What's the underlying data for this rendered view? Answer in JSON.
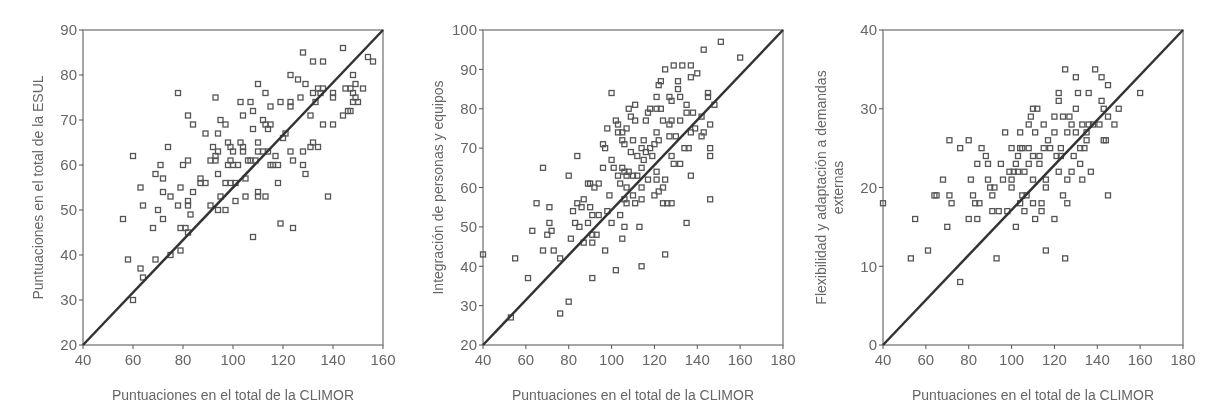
{
  "chart_data": [
    {
      "type": "scatter",
      "xlabel": "Puntuaciones en el total de la CLIMOR",
      "ylabel": "Puntuaciones en el total de la ESUL",
      "xlim": [
        40,
        160
      ],
      "ylim": [
        20,
        90
      ],
      "xticks": [
        40,
        60,
        80,
        100,
        120,
        140,
        160
      ],
      "yticks": [
        20,
        30,
        40,
        50,
        60,
        70,
        80,
        90
      ],
      "grid": false,
      "series": [
        {
          "marker": "square",
          "color": "#555555",
          "x": [
            56,
            58,
            60,
            60,
            63,
            63,
            64,
            64,
            68,
            69,
            69,
            70,
            71,
            72,
            72,
            72,
            74,
            75,
            75,
            78,
            78,
            79,
            79,
            79,
            80,
            81,
            82,
            82,
            82,
            82,
            82,
            83,
            84,
            84,
            87,
            87,
            89,
            89,
            91,
            91,
            92,
            93,
            93,
            93,
            94,
            94,
            94,
            94,
            95,
            95,
            97,
            97,
            97,
            98,
            98,
            99,
            99,
            99,
            100,
            100,
            101,
            101,
            102,
            103,
            103,
            104,
            104,
            104,
            105,
            105,
            106,
            107,
            107,
            108,
            108,
            108,
            109,
            110,
            110,
            110,
            110,
            110,
            112,
            112,
            113,
            113,
            113,
            114,
            114,
            115,
            115,
            115,
            116,
            117,
            118,
            118,
            119,
            119,
            120,
            121,
            123,
            123,
            123,
            123,
            124,
            124,
            126,
            127,
            128,
            128,
            128,
            129,
            129,
            131,
            131,
            132,
            132,
            132,
            133,
            134,
            134,
            135,
            136,
            136,
            136,
            140,
            140,
            140,
            138,
            144,
            144,
            145,
            146,
            147,
            147,
            148,
            148,
            148,
            149,
            149,
            150,
            152,
            154,
            156
          ],
          "values": [
            48,
            39,
            62,
            30,
            37,
            55,
            51,
            35,
            46,
            58,
            39,
            50,
            60,
            57,
            54,
            48,
            64,
            53,
            40,
            76,
            51,
            55,
            46,
            41,
            60,
            46,
            45,
            61,
            71,
            52,
            51,
            49,
            69,
            54,
            57,
            56,
            67,
            56,
            61,
            51,
            64,
            75,
            62,
            61,
            67,
            63,
            58,
            50,
            53,
            70,
            69,
            56,
            50,
            65,
            60,
            61,
            56,
            64,
            63,
            60,
            56,
            52,
            60,
            74,
            65,
            71,
            64,
            63,
            57,
            53,
            61,
            74,
            61,
            72,
            68,
            44,
            61,
            78,
            65,
            63,
            54,
            53,
            70,
            63,
            76,
            53,
            69,
            68,
            63,
            73,
            69,
            60,
            60,
            62,
            60,
            56,
            74,
            47,
            66,
            67,
            80,
            74,
            73,
            63,
            61,
            46,
            79,
            75,
            85,
            63,
            60,
            78,
            58,
            64,
            71,
            83,
            76,
            65,
            74,
            64,
            77,
            76,
            83,
            77,
            69,
            76,
            75,
            69,
            53,
            71,
            86,
            77,
            72,
            77,
            72,
            80,
            76,
            74,
            78,
            75,
            74,
            77,
            84,
            83
          ]
        },
        {
          "type": "line",
          "color": "#333333",
          "x": [
            40,
            160
          ],
          "values": [
            20,
            90
          ]
        }
      ]
    },
    {
      "type": "scatter",
      "xlabel": "Puntuaciones en el total de la CLIMOR",
      "ylabel": "Integración de personas y equipos",
      "xlim": [
        40,
        180
      ],
      "ylim": [
        20,
        100
      ],
      "xticks": [
        40,
        60,
        80,
        100,
        120,
        140,
        160,
        180
      ],
      "yticks": [
        20,
        30,
        40,
        50,
        60,
        70,
        80,
        90,
        100
      ],
      "grid": false,
      "series": [
        {
          "marker": "square",
          "color": "#555555",
          "x": [
            40,
            53,
            55,
            61,
            63,
            65,
            68,
            68,
            70,
            71,
            71,
            72,
            73,
            76,
            76,
            80,
            80,
            81,
            82,
            83,
            84,
            84,
            85,
            86,
            87,
            87,
            89,
            89,
            90,
            90,
            91,
            91,
            91,
            91,
            92,
            93,
            94,
            94,
            96,
            96,
            97,
            97,
            98,
            98,
            99,
            100,
            100,
            100,
            101,
            102,
            102,
            103,
            103,
            103,
            104,
            104,
            105,
            105,
            105,
            105,
            106,
            106,
            106,
            106,
            107,
            107,
            107,
            107,
            108,
            108,
            109,
            109,
            110,
            110,
            110,
            111,
            111,
            111,
            112,
            112,
            113,
            114,
            114,
            114,
            114,
            114,
            115,
            115,
            116,
            116,
            117,
            117,
            118,
            118,
            119,
            120,
            120,
            121,
            121,
            121,
            121,
            121,
            122,
            122,
            122,
            123,
            123,
            124,
            124,
            124,
            125,
            125,
            125,
            126,
            127,
            127,
            127,
            128,
            128,
            128,
            128,
            129,
            129,
            130,
            131,
            131,
            132,
            132,
            132,
            133,
            134,
            135,
            135,
            135,
            136,
            137,
            137,
            137,
            137,
            138,
            139,
            140,
            142,
            142,
            143,
            143,
            145,
            145,
            146,
            146,
            146,
            146,
            148,
            151,
            160
          ],
          "values": [
            43,
            27,
            42,
            37,
            49,
            56,
            65,
            44,
            48,
            55,
            51,
            49,
            44,
            42,
            28,
            63,
            31,
            47,
            54,
            51,
            68,
            56,
            50,
            55,
            57,
            46,
            51,
            61,
            61,
            55,
            53,
            48,
            46,
            37,
            60,
            48,
            53,
            61,
            71,
            65,
            70,
            44,
            75,
            54,
            58,
            84,
            67,
            51,
            65,
            77,
            39,
            76,
            74,
            63,
            61,
            53,
            74,
            72,
            65,
            47,
            71,
            64,
            57,
            50,
            75,
            63,
            60,
            56,
            80,
            64,
            78,
            69,
            72,
            63,
            58,
            81,
            77,
            56,
            68,
            63,
            50,
            70,
            65,
            60,
            57,
            40,
            72,
            67,
            69,
            77,
            79,
            62,
            80,
            70,
            68,
            58,
            71,
            83,
            80,
            74,
            64,
            62,
            86,
            72,
            59,
            87,
            80,
            77,
            60,
            56,
            90,
            62,
            43,
            56,
            83,
            76,
            73,
            82,
            77,
            68,
            56,
            91,
            66,
            73,
            87,
            85,
            83,
            77,
            66,
            91,
            70,
            81,
            79,
            51,
            70,
            91,
            88,
            74,
            63,
            79,
            75,
            89,
            73,
            78,
            95,
            74,
            84,
            83,
            70,
            68,
            57,
            76,
            81,
            97,
            93
          ]
        },
        {
          "type": "line",
          "color": "#333333",
          "x": [
            40,
            180
          ],
          "values": [
            20,
            100
          ]
        }
      ]
    },
    {
      "type": "scatter",
      "xlabel": "Puntuaciones en el total de la CLIMOR",
      "ylabel": "Flexibilidad y adaptación a demandas externas",
      "xlim": [
        40,
        180
      ],
      "ylim": [
        0,
        40
      ],
      "xticks": [
        40,
        60,
        80,
        100,
        120,
        140,
        160,
        180
      ],
      "yticks": [
        0,
        10,
        20,
        30,
        40
      ],
      "grid": false,
      "series": [
        {
          "marker": "square",
          "color": "#555555",
          "x": [
            40,
            53,
            55,
            61,
            64,
            65,
            68,
            70,
            71,
            71,
            72,
            76,
            76,
            80,
            80,
            81,
            82,
            83,
            84,
            84,
            85,
            86,
            88,
            89,
            89,
            90,
            91,
            91,
            92,
            93,
            94,
            95,
            96,
            97,
            98,
            99,
            100,
            100,
            100,
            101,
            102,
            102,
            103,
            103,
            104,
            104,
            104,
            105,
            105,
            106,
            106,
            107,
            108,
            108,
            108,
            109,
            110,
            110,
            110,
            110,
            111,
            111,
            112,
            113,
            113,
            114,
            114,
            115,
            115,
            116,
            116,
            116,
            117,
            118,
            120,
            120,
            120,
            121,
            122,
            122,
            122,
            123,
            123,
            124,
            124,
            125,
            125,
            126,
            126,
            126,
            127,
            128,
            128,
            129,
            130,
            130,
            130,
            131,
            132,
            132,
            133,
            133,
            134,
            135,
            135,
            136,
            136,
            137,
            138,
            139,
            141,
            142,
            142,
            143,
            143,
            144,
            145,
            145,
            145,
            148,
            150,
            160
          ],
          "values": [
            18,
            11,
            16,
            12,
            19,
            19,
            21,
            15,
            26,
            19,
            18,
            25,
            8,
            26,
            16,
            21,
            19,
            18,
            23,
            16,
            18,
            25,
            24,
            21,
            23,
            20,
            19,
            17,
            20,
            11,
            17,
            23,
            21,
            27,
            17,
            22,
            25,
            21,
            20,
            22,
            15,
            23,
            24,
            22,
            25,
            27,
            18,
            19,
            25,
            22,
            17,
            19,
            25,
            28,
            23,
            29,
            30,
            24,
            21,
            18,
            16,
            27,
            30,
            24,
            23,
            17,
            18,
            25,
            28,
            21,
            12,
            20,
            26,
            25,
            16,
            27,
            29,
            24,
            32,
            31,
            22,
            25,
            24,
            19,
            29,
            35,
            11,
            27,
            21,
            18,
            29,
            22,
            28,
            24,
            30,
            34,
            27,
            32,
            25,
            23,
            28,
            21,
            25,
            27,
            26,
            28,
            32,
            22,
            28,
            35,
            28,
            34,
            31,
            26,
            30,
            26,
            33,
            29,
            19,
            28,
            30,
            32
          ]
        },
        {
          "type": "line",
          "color": "#333333",
          "x": [
            40,
            180
          ],
          "values": [
            0,
            40
          ]
        }
      ]
    }
  ]
}
